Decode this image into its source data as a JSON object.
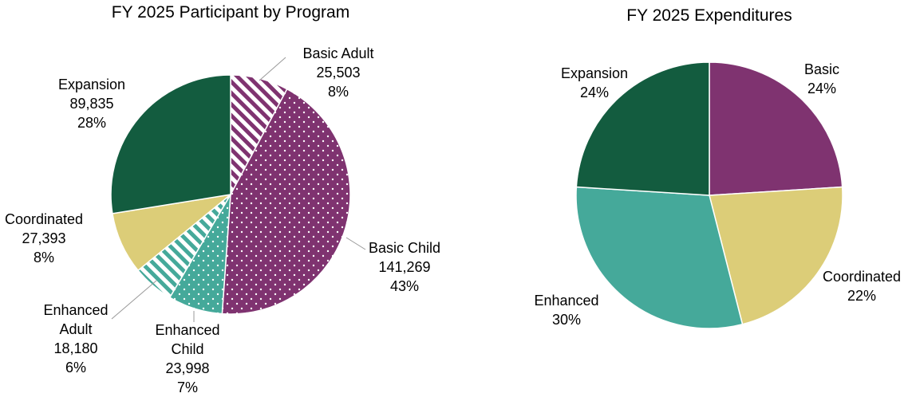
{
  "chart_data": [
    {
      "type": "pie",
      "title": "FY 2025 Participant by Program",
      "categories": [
        "Basic Adult",
        "Basic Child",
        "Enhanced Child",
        "Enhanced Adult",
        "Coordinated",
        "Expansion"
      ],
      "values": [
        25503,
        141269,
        23998,
        18180,
        27393,
        89835
      ],
      "value_labels": [
        "25,503",
        "141,269",
        "23,998",
        "18,180",
        "27,393",
        "89,835"
      ],
      "percents": [
        8,
        43,
        7,
        6,
        8,
        28
      ],
      "percent_labels": [
        "8%",
        "43%",
        "7%",
        "6%",
        "8%",
        "28%"
      ],
      "colors": [
        "#7f3370",
        "#7f3370",
        "#45a99a",
        "#45a99a",
        "#dccd78",
        "#135c3f"
      ],
      "patterns": [
        "stripes",
        "dots",
        "dots",
        "stripes",
        "solid",
        "solid"
      ]
    },
    {
      "type": "pie",
      "title": "FY 2025 Expenditures",
      "categories": [
        "Basic",
        "Coordinated",
        "Enhanced",
        "Expansion"
      ],
      "values": [
        24,
        22,
        30,
        24
      ],
      "value_labels": [
        "24%",
        "22%",
        "30%",
        "24%"
      ],
      "colors": [
        "#7f3370",
        "#dccd78",
        "#45a99a",
        "#135c3f"
      ]
    }
  ]
}
